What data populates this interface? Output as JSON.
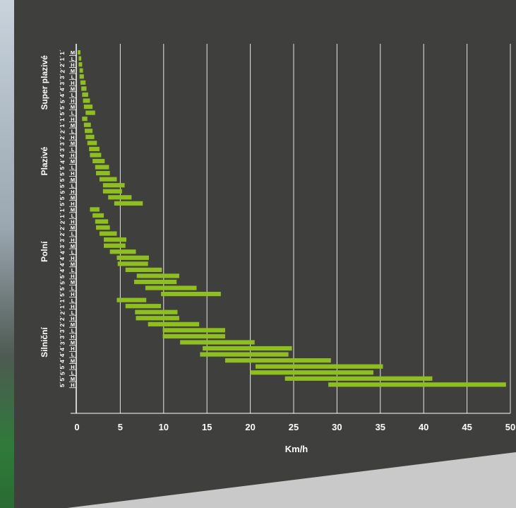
{
  "chart_data": {
    "type": "bar",
    "orientation": "horizontal-range",
    "xlabel": "Km/h",
    "xlim": [
      0,
      50
    ],
    "x_ticks": [
      "0",
      "5",
      "10",
      "15",
      "20",
      "25",
      "30",
      "35",
      "40",
      "45",
      "50"
    ],
    "grid": true,
    "colors": {
      "bar": "#8fbf1e",
      "grid": "#e6e6e6",
      "background": "#3f3f3d",
      "text": "#ffffff"
    },
    "groups": [
      {
        "name": "Super plazivé",
        "rows": [
          {
            "gear": "1´",
            "range": "M",
            "x": [
              0.1,
              0.4
            ]
          },
          {
            "gear": "1´",
            "range": "L",
            "x": [
              0.2,
              0.5
            ]
          },
          {
            "gear": "2´",
            "range": "H",
            "x": [
              0.2,
              0.6
            ]
          },
          {
            "gear": "2´",
            "range": "M",
            "x": [
              0.3,
              0.7
            ]
          },
          {
            "gear": "3´",
            "range": "L",
            "x": [
              0.3,
              0.8
            ]
          },
          {
            "gear": "3´",
            "range": "H",
            "x": [
              0.4,
              1.0
            ]
          },
          {
            "gear": "4´",
            "range": "M",
            "x": [
              0.5,
              1.1
            ]
          },
          {
            "gear": "4´",
            "range": "L",
            "x": [
              0.6,
              1.3
            ]
          },
          {
            "gear": "5´",
            "range": "H",
            "x": [
              0.7,
              1.5
            ]
          },
          {
            "gear": "5´",
            "range": "M",
            "x": [
              0.8,
              1.8
            ]
          },
          {
            "gear": "5´",
            "range": "L",
            "x": [
              1.0,
              2.1
            ]
          }
        ]
      },
      {
        "name": "Plazivé",
        "rows": [
          {
            "gear": "1´",
            "range": "H",
            "x": [
              0.6,
              1.2
            ]
          },
          {
            "gear": "1´",
            "range": "M",
            "x": [
              0.8,
              1.6
            ]
          },
          {
            "gear": "2´",
            "range": "L",
            "x": [
              0.9,
              1.8
            ]
          },
          {
            "gear": "2´",
            "range": "H",
            "x": [
              1.0,
              2.0
            ]
          },
          {
            "gear": "3´",
            "range": "M",
            "x": [
              1.2,
              2.3
            ]
          },
          {
            "gear": "3´",
            "range": "L",
            "x": [
              1.4,
              2.6
            ]
          },
          {
            "gear": "4´",
            "range": "H",
            "x": [
              1.5,
              2.8
            ]
          },
          {
            "gear": "4´",
            "range": "M",
            "x": [
              1.8,
              3.2
            ]
          },
          {
            "gear": "5´",
            "range": "L",
            "x": [
              2.1,
              3.7
            ]
          },
          {
            "gear": "5´",
            "range": "H",
            "x": [
              2.2,
              3.8
            ]
          },
          {
            "gear": "5´",
            "range": "M",
            "x": [
              2.6,
              4.6
            ]
          },
          {
            "gear": "5´",
            "range": "L",
            "x": [
              3.0,
              5.5
            ]
          },
          {
            "gear": "5´",
            "range": "H",
            "x": [
              3.0,
              5.2
            ]
          },
          {
            "gear": "5´",
            "range": "M",
            "x": [
              3.6,
              6.3
            ]
          },
          {
            "gear": "5´",
            "range": "H",
            "x": [
              4.3,
              7.6
            ]
          }
        ]
      },
      {
        "name": "Polní",
        "rows": [
          {
            "gear": "1´",
            "range": "M",
            "x": [
              1.5,
              2.6
            ]
          },
          {
            "gear": "1´",
            "range": "L",
            "x": [
              1.8,
              3.1
            ]
          },
          {
            "gear": "2´",
            "range": "H",
            "x": [
              2.1,
              3.6
            ]
          },
          {
            "gear": "2´",
            "range": "M",
            "x": [
              2.2,
              3.8
            ]
          },
          {
            "gear": "2´",
            "range": "L",
            "x": [
              2.6,
              4.6
            ]
          },
          {
            "gear": "3´",
            "range": "H",
            "x": [
              3.1,
              5.7
            ]
          },
          {
            "gear": "3´",
            "range": "M",
            "x": [
              3.1,
              5.6
            ]
          },
          {
            "gear": "4´",
            "range": "L",
            "x": [
              3.8,
              6.8
            ]
          },
          {
            "gear": "4´",
            "range": "H",
            "x": [
              4.6,
              8.3
            ]
          },
          {
            "gear": "4´",
            "range": "M",
            "x": [
              4.7,
              8.2
            ]
          },
          {
            "gear": "4´",
            "range": "L",
            "x": [
              5.6,
              9.8
            ]
          },
          {
            "gear": "5´",
            "range": "H",
            "x": [
              6.9,
              11.8
            ]
          },
          {
            "gear": "5´",
            "range": "M",
            "x": [
              6.6,
              11.5
            ]
          },
          {
            "gear": "5´",
            "range": "L",
            "x": [
              7.9,
              13.8
            ]
          },
          {
            "gear": "5´",
            "range": "H",
            "x": [
              9.7,
              16.6
            ]
          }
        ]
      },
      {
        "name": "Silniční",
        "rows": [
          {
            "gear": "1´",
            "range": "L",
            "x": [
              4.6,
              8.0
            ]
          },
          {
            "gear": "1´",
            "range": "H",
            "x": [
              5.6,
              9.7
            ]
          },
          {
            "gear": "2´",
            "range": "L",
            "x": [
              6.7,
              11.6
            ]
          },
          {
            "gear": "2´",
            "range": "H",
            "x": [
              6.8,
              11.8
            ]
          },
          {
            "gear": "2´",
            "range": "M",
            "x": [
              8.2,
              14.1
            ]
          },
          {
            "gear": "3´",
            "range": "L",
            "x": [
              9.9,
              17.1
            ]
          },
          {
            "gear": "3´",
            "range": "H",
            "x": [
              9.9,
              17.1
            ]
          },
          {
            "gear": "3´",
            "range": "M",
            "x": [
              11.9,
              20.5
            ]
          },
          {
            "gear": "4´",
            "range": "H",
            "x": [
              14.5,
              24.8
            ]
          },
          {
            "gear": "4´",
            "range": "L",
            "x": [
              14.2,
              24.4
            ]
          },
          {
            "gear": "4´",
            "range": "M",
            "x": [
              17.1,
              29.3
            ]
          },
          {
            "gear": "5´",
            "range": "H",
            "x": [
              20.6,
              35.3
            ]
          },
          {
            "gear": "5´",
            "range": "L",
            "x": [
              20.0,
              34.2
            ]
          },
          {
            "gear": "5´",
            "range": "M",
            "x": [
              24.0,
              41.0
            ]
          },
          {
            "gear": "5´",
            "range": "H",
            "x": [
              29.0,
              49.5
            ]
          }
        ]
      }
    ]
  }
}
